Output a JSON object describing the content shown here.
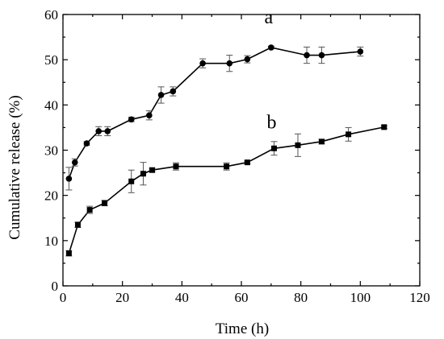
{
  "chart_data": {
    "type": "line",
    "xlabel": "Time (h)",
    "ylabel": "Cumulative release (%)",
    "xlim": [
      0,
      120
    ],
    "ylim": [
      0,
      60
    ],
    "x_ticks": [
      0,
      20,
      40,
      60,
      80,
      100,
      120
    ],
    "y_ticks": [
      0,
      10,
      20,
      30,
      40,
      50,
      60
    ],
    "grid": false,
    "series": [
      {
        "name": "a",
        "marker": "circle",
        "points": [
          {
            "x": 2,
            "y": 23.7,
            "err": 2.5
          },
          {
            "x": 4,
            "y": 27.3,
            "err": 0.8
          },
          {
            "x": 8,
            "y": 31.5,
            "err": 0.4
          },
          {
            "x": 12,
            "y": 34.2,
            "err": 1.0
          },
          {
            "x": 15,
            "y": 34.2,
            "err": 1.0
          },
          {
            "x": 23,
            "y": 36.8,
            "err": 0.5
          },
          {
            "x": 29,
            "y": 37.7,
            "err": 1.0
          },
          {
            "x": 33,
            "y": 42.2,
            "err": 1.8
          },
          {
            "x": 37,
            "y": 43.0,
            "err": 1.0
          },
          {
            "x": 47,
            "y": 49.2,
            "err": 1.0
          },
          {
            "x": 56,
            "y": 49.2,
            "err": 1.8
          },
          {
            "x": 62,
            "y": 50.1,
            "err": 0.8
          },
          {
            "x": 70,
            "y": 52.7,
            "err": 0.3
          },
          {
            "x": 82,
            "y": 51.0,
            "err": 1.8
          },
          {
            "x": 87,
            "y": 51.0,
            "err": 1.8
          },
          {
            "x": 100,
            "y": 51.8,
            "err": 1.0
          }
        ]
      },
      {
        "name": "b",
        "marker": "square",
        "points": [
          {
            "x": 2,
            "y": 7.2,
            "err": 0.6
          },
          {
            "x": 5,
            "y": 13.5,
            "err": 0.6
          },
          {
            "x": 9,
            "y": 16.8,
            "err": 0.8
          },
          {
            "x": 14,
            "y": 18.3,
            "err": 0.6
          },
          {
            "x": 23,
            "y": 23.1,
            "err": 2.5
          },
          {
            "x": 27,
            "y": 24.8,
            "err": 2.5
          },
          {
            "x": 30,
            "y": 25.6,
            "err": 0.4
          },
          {
            "x": 38,
            "y": 26.4,
            "err": 0.8
          },
          {
            "x": 55,
            "y": 26.4,
            "err": 0.8
          },
          {
            "x": 62,
            "y": 27.3,
            "err": 0.3
          },
          {
            "x": 71,
            "y": 30.4,
            "err": 1.5
          },
          {
            "x": 79,
            "y": 31.1,
            "err": 2.5
          },
          {
            "x": 87,
            "y": 31.9,
            "err": 0.5
          },
          {
            "x": 96,
            "y": 33.5,
            "err": 1.5
          },
          {
            "x": 108,
            "y": 35.1,
            "err": 0.3
          }
        ]
      }
    ]
  }
}
